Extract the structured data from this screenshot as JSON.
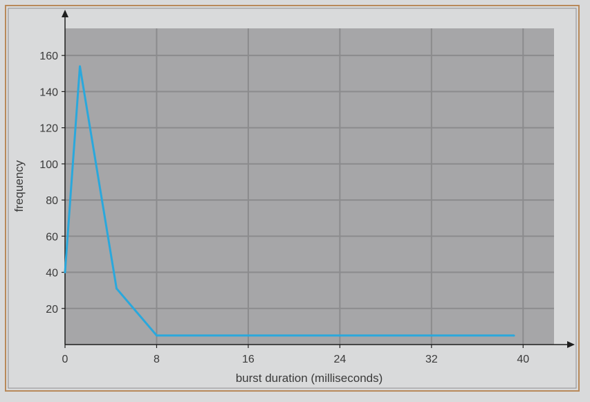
{
  "chart_data": {
    "type": "line",
    "title": "",
    "xlabel": "burst duration (milliseconds)",
    "ylabel": "frequency",
    "x_ticks": [
      0,
      8,
      16,
      24,
      32,
      40
    ],
    "y_ticks": [
      20,
      40,
      60,
      80,
      100,
      120,
      140,
      160
    ],
    "x_range": [
      0,
      42.7
    ],
    "y_range": [
      0,
      175
    ],
    "grid": true,
    "legend": "none",
    "colors": {
      "line": "#2aa8dc",
      "plot_bg": "#a6a6a8",
      "grid": "#8b8b8d",
      "outer_bg": "#d9dadb",
      "border_outer": "#b8895a"
    },
    "series": [
      {
        "x": [
          0,
          1.3,
          4.5,
          8,
          16,
          24,
          32,
          39.2
        ],
        "y": [
          40,
          154,
          31,
          5,
          5,
          5,
          5,
          5
        ]
      }
    ]
  }
}
